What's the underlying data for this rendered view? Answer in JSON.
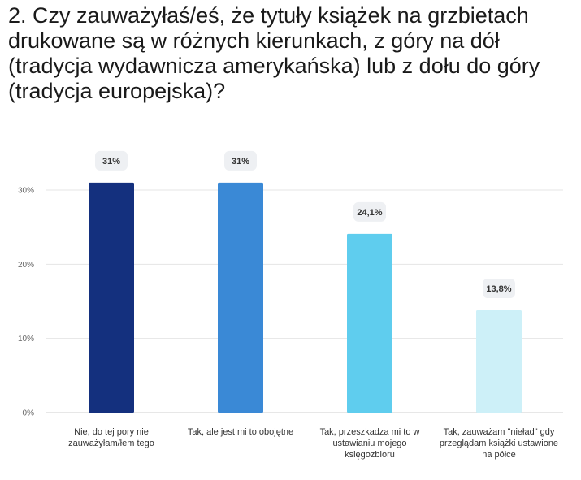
{
  "question": {
    "title": "2. Czy zauważyłaś/eś, że tytuły książek na grzbietach drukowane są w różnych kierunkach, z góry na dół (tradycja wydawnicza amerykańska) lub z dołu do góry (tradycja europejska)?"
  },
  "chart_data": {
    "type": "bar",
    "categories": [
      "Nie, do tej pory nie zauważyłam/łem tego",
      "Tak, ale jest mi to obojętne",
      "Tak, przeszkadza mi to w ustawianiu mojego księgozbioru",
      "Tak, zauważam \"nieład\" gdy przeglądam książki ustawione na półce"
    ],
    "values": [
      31,
      31,
      24.1,
      13.8
    ],
    "value_labels": [
      "31%",
      "31%",
      "24,1%",
      "13,8%"
    ],
    "colors": [
      "#14307e",
      "#3a89d6",
      "#5fcdee",
      "#cdf0f8"
    ],
    "ylim": [
      0,
      30
    ],
    "yticks": [
      0,
      10,
      20,
      30
    ],
    "ytick_labels": [
      "0%",
      "10%",
      "20%",
      "30%"
    ],
    "grid": true,
    "legend": "none"
  }
}
